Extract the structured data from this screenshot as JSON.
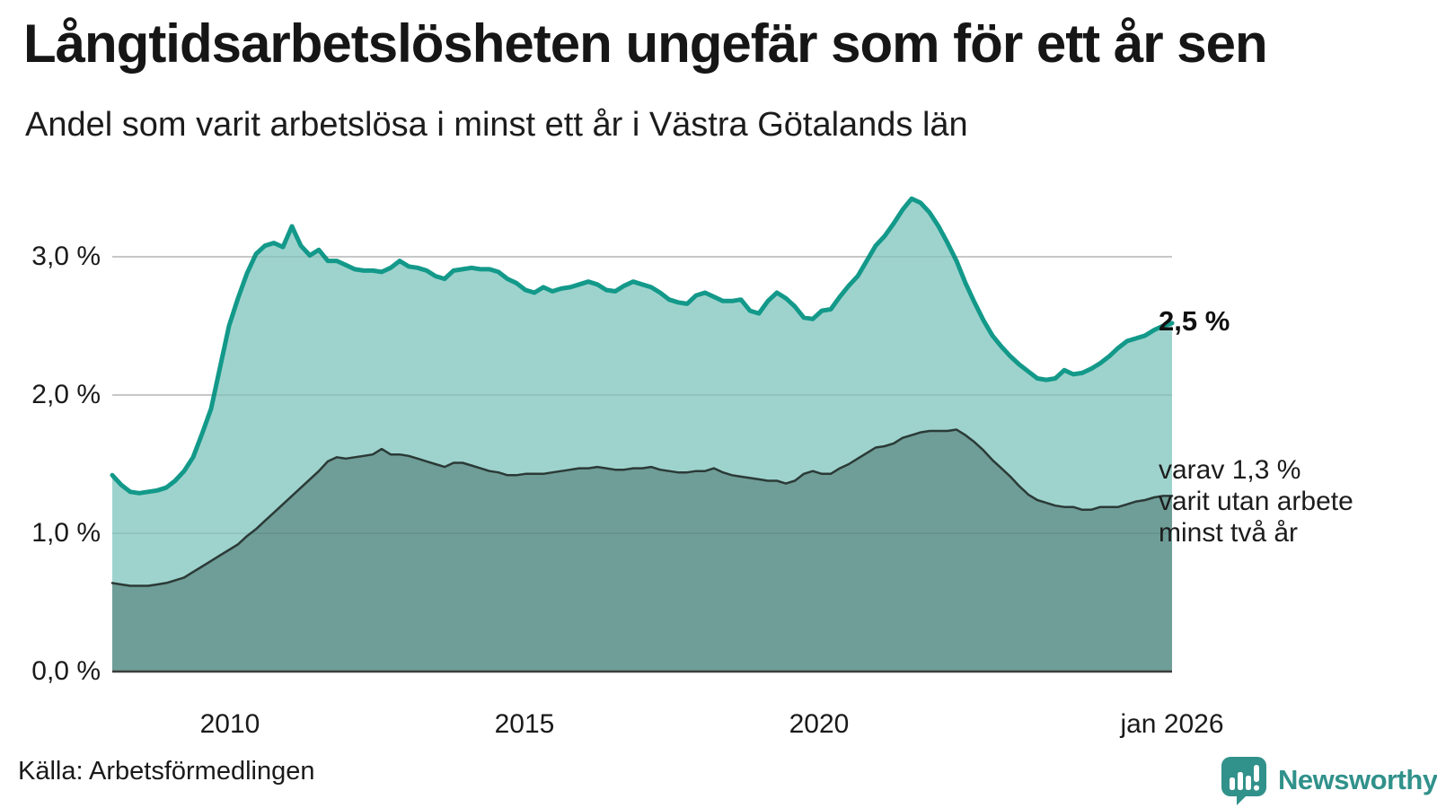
{
  "chart_data": {
    "type": "area",
    "title": "Långtidsarbetslösheten ungefär som för ett år sen",
    "subtitle": "Andel som varit arbetslösa i minst ett år i Västra Götalands län",
    "xlabel": "",
    "ylabel": "",
    "x_start": 2008.0,
    "x_end": 2026.0,
    "x_end_label": "jan 2026",
    "ylim": [
      0,
      3.5
    ],
    "grid": true,
    "legend_position": "right-annotations",
    "colors": {
      "grid": "#d9d9d9",
      "grid_overlay": "rgba(40,60,60,0.10)",
      "axis": "#3d3d3d",
      "text": "#1a1a1a"
    },
    "yticks": [
      {
        "value": 0,
        "label": "0,0 %"
      },
      {
        "value": 1,
        "label": "1,0 %"
      },
      {
        "value": 2,
        "label": "2,0 %"
      },
      {
        "value": 3,
        "label": "3,0 %"
      }
    ],
    "xticks": [
      {
        "value": 2010,
        "label": "2010"
      },
      {
        "value": 2015,
        "label": "2015"
      },
      {
        "value": 2020,
        "label": "2020"
      },
      {
        "value": 2026,
        "label": "jan 2026"
      }
    ],
    "end_labels": {
      "total": "2,5 %",
      "detail_lines": [
        "varav 1,3 %",
        "varit utan arbete",
        "minst två år"
      ]
    },
    "series": [
      {
        "name": "Andel arbetslösa minst ett år",
        "color": "#13998a",
        "fill": "#9ed3cd",
        "line_width": 5,
        "end_value": 2.5,
        "values": [
          1.42,
          1.35,
          1.3,
          1.29,
          1.3,
          1.31,
          1.33,
          1.38,
          1.45,
          1.55,
          1.72,
          1.9,
          2.2,
          2.5,
          2.7,
          2.88,
          3.02,
          3.08,
          3.1,
          3.07,
          3.22,
          3.08,
          3.01,
          3.05,
          2.97,
          2.97,
          2.94,
          2.91,
          2.9,
          2.9,
          2.89,
          2.92,
          2.97,
          2.93,
          2.92,
          2.9,
          2.86,
          2.84,
          2.9,
          2.91,
          2.92,
          2.91,
          2.91,
          2.89,
          2.84,
          2.81,
          2.76,
          2.74,
          2.78,
          2.75,
          2.77,
          2.78,
          2.8,
          2.82,
          2.8,
          2.76,
          2.75,
          2.79,
          2.82,
          2.8,
          2.78,
          2.74,
          2.69,
          2.67,
          2.66,
          2.72,
          2.74,
          2.71,
          2.68,
          2.68,
          2.69,
          2.61,
          2.59,
          2.68,
          2.74,
          2.7,
          2.64,
          2.56,
          2.55,
          2.61,
          2.62,
          2.71,
          2.79,
          2.86,
          2.97,
          3.08,
          3.15,
          3.24,
          3.34,
          3.42,
          3.39,
          3.32,
          3.22,
          3.1,
          2.97,
          2.81,
          2.67,
          2.54,
          2.43,
          2.35,
          2.28,
          2.22,
          2.17,
          2.12,
          2.11,
          2.12,
          2.18,
          2.15,
          2.16,
          2.19,
          2.23,
          2.28,
          2.34,
          2.39,
          2.41,
          2.43,
          2.47,
          2.5,
          2.52
        ]
      },
      {
        "name": "varav utan arbete minst två år",
        "color": "#2b3a37",
        "fill": "#6f9d97",
        "line_width": 2.5,
        "end_value": 1.3,
        "values": [
          0.64,
          0.63,
          0.62,
          0.62,
          0.62,
          0.63,
          0.64,
          0.66,
          0.68,
          0.72,
          0.76,
          0.8,
          0.84,
          0.88,
          0.92,
          0.98,
          1.03,
          1.09,
          1.15,
          1.21,
          1.27,
          1.33,
          1.39,
          1.45,
          1.52,
          1.55,
          1.54,
          1.55,
          1.56,
          1.57,
          1.61,
          1.57,
          1.57,
          1.56,
          1.54,
          1.52,
          1.5,
          1.48,
          1.51,
          1.51,
          1.49,
          1.47,
          1.45,
          1.44,
          1.42,
          1.42,
          1.43,
          1.43,
          1.43,
          1.44,
          1.45,
          1.46,
          1.47,
          1.47,
          1.48,
          1.47,
          1.46,
          1.46,
          1.47,
          1.47,
          1.48,
          1.46,
          1.45,
          1.44,
          1.44,
          1.45,
          1.45,
          1.47,
          1.44,
          1.42,
          1.41,
          1.4,
          1.39,
          1.38,
          1.38,
          1.36,
          1.38,
          1.43,
          1.45,
          1.43,
          1.43,
          1.47,
          1.5,
          1.54,
          1.58,
          1.62,
          1.63,
          1.65,
          1.69,
          1.71,
          1.73,
          1.74,
          1.74,
          1.74,
          1.75,
          1.71,
          1.66,
          1.6,
          1.53,
          1.47,
          1.41,
          1.34,
          1.28,
          1.24,
          1.22,
          1.2,
          1.19,
          1.19,
          1.17,
          1.17,
          1.19,
          1.19,
          1.19,
          1.21,
          1.23,
          1.24,
          1.26,
          1.27,
          1.27
        ]
      }
    ]
  },
  "footer": {
    "source": "Källa: Arbetsförmedlingen",
    "brand": "Newsworthy"
  }
}
